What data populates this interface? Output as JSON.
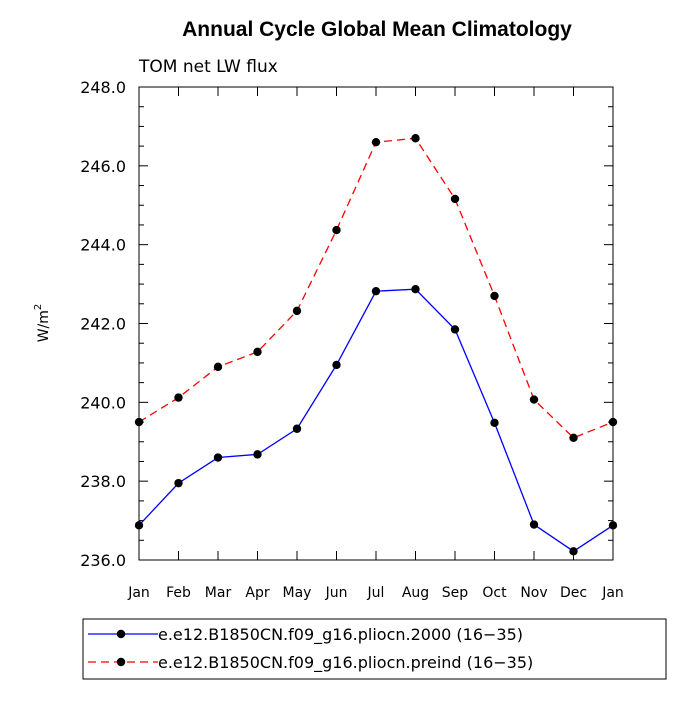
{
  "chart_data": {
    "type": "line",
    "title": "Annual Cycle Global Mean Climatology",
    "subtitle": "TOM net LW flux",
    "xlabel": "",
    "ylabel": "W/m",
    "ylabel_sup": "2",
    "categories": [
      "Jan",
      "Feb",
      "Mar",
      "Apr",
      "May",
      "Jun",
      "Jul",
      "Aug",
      "Sep",
      "Oct",
      "Nov",
      "Dec",
      "Jan"
    ],
    "ylim": [
      236.0,
      248.0
    ],
    "yticks": [
      "236.0",
      "238.0",
      "240.0",
      "242.0",
      "244.0",
      "246.0",
      "248.0"
    ],
    "grid": false,
    "legend_position": "bottom",
    "series": [
      {
        "name": "e.e12.B1850CN.f09_g16.pliocn.2000 (16−35)",
        "color": "#0000ff",
        "line_style": "solid",
        "marker": "filled-circle",
        "values": [
          236.88,
          237.95,
          238.6,
          238.68,
          239.33,
          240.95,
          242.82,
          242.87,
          241.85,
          239.48,
          236.9,
          236.22,
          236.88
        ]
      },
      {
        "name": "e.e12.B1850CN.f09_g16.pliocn.preind (16−35)",
        "color": "#ff0000",
        "line_style": "dashed",
        "marker": "filled-circle",
        "values": [
          239.5,
          240.12,
          240.9,
          241.28,
          242.32,
          244.37,
          246.6,
          246.7,
          245.16,
          242.7,
          240.07,
          239.1,
          239.5
        ]
      }
    ]
  }
}
